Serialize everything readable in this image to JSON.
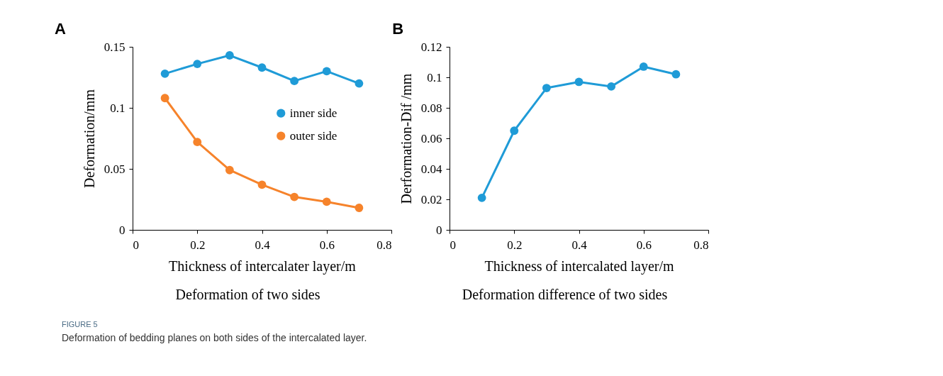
{
  "chart_data": [
    {
      "type": "line",
      "title": "A",
      "xlabel": "Thickness  of intercalater layer/m",
      "ylabel": "Deformation/mm",
      "x": [
        0.1,
        0.2,
        0.3,
        0.4,
        0.5,
        0.6,
        0.7
      ],
      "series": [
        {
          "name": "inner side",
          "color": "#1f9bd7",
          "values": [
            0.128,
            0.136,
            0.143,
            0.133,
            0.122,
            0.13,
            0.12
          ]
        },
        {
          "name": "outer side",
          "color": "#f6832b",
          "values": [
            0.108,
            0.072,
            0.049,
            0.037,
            0.027,
            0.023,
            0.018
          ]
        }
      ],
      "xlim": [
        0,
        0.8
      ],
      "xticks": [
        0,
        0.2,
        0.4,
        0.6,
        0.8
      ],
      "ylim": [
        0,
        0.15
      ],
      "yticks": [
        0,
        0.05,
        0.1,
        0.15
      ],
      "grid": false,
      "legend": "right",
      "marker": "circle",
      "line_style": "solid",
      "annotations": [
        "Deformation of two sides",
        "FIGURE 5",
        "Deformation of bedding planes on both sides of the intercalated layer."
      ]
    },
    {
      "type": "line",
      "title": "B",
      "xlabel": "Thickness  of intercalated layer/m",
      "ylabel": "Derformation-Dif /mm",
      "x": [
        0.1,
        0.2,
        0.3,
        0.4,
        0.5,
        0.6,
        0.7
      ],
      "series": [
        {
          "color": "#1f9bd7",
          "values": [
            0.021,
            0.065,
            0.093,
            0.097,
            0.094,
            0.107,
            0.102
          ]
        }
      ],
      "xlim": [
        0,
        0.8
      ],
      "xticks": [
        0,
        0.2,
        0.4,
        0.6,
        0.8
      ],
      "ylim": [
        0,
        0.12
      ],
      "yticks": [
        0,
        0.02,
        0.04,
        0.06,
        0.08,
        0.1,
        0.12
      ],
      "grid": false,
      "legend": false,
      "marker": "circle",
      "line_style": "solid",
      "annotations": [
        "Deformation difference  of two sides"
      ]
    }
  ]
}
